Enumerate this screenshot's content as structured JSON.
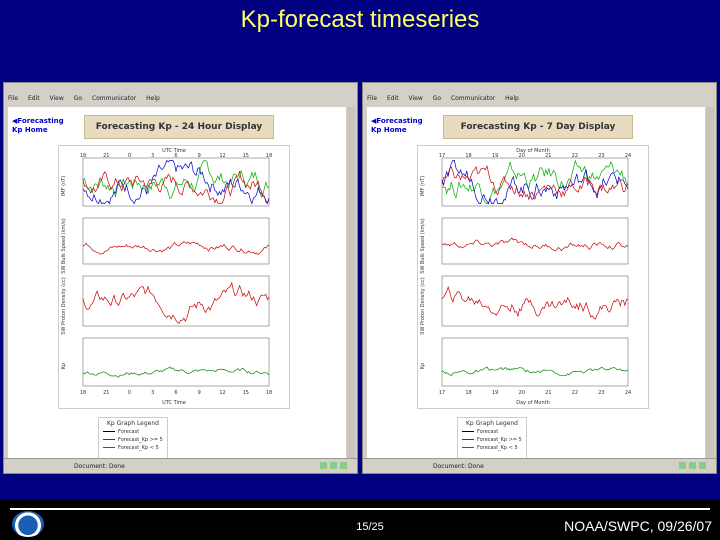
{
  "slide": {
    "title": "Kp-forecast timeseries",
    "page": "15/25",
    "credit": "NOAA/SWPC, 09/26/07"
  },
  "windows": [
    {
      "menu": [
        "File",
        "Edit",
        "View",
        "Go",
        "Communicator",
        "Help"
      ],
      "home_link": "Forecasting Kp Home",
      "header": "Forecasting Kp - 24 Hour Display",
      "top_axis": "UTC Time",
      "bottom_axis": "UTC Time",
      "top_ticks": [
        "18",
        "21",
        "0",
        "3",
        "6",
        "9",
        "12",
        "15",
        "18"
      ],
      "bottom_ticks": [
        "18",
        "21",
        "0",
        "3",
        "6",
        "9",
        "12",
        "15",
        "18"
      ],
      "status": "Document: Done",
      "panels": [
        "IMF (nT)",
        "SW Bulk Speed (km/s)",
        "SW Proton Density (cc)",
        "Kp"
      ],
      "legend": {
        "title": "Kp Graph Legend",
        "items": [
          "Forecast",
          "Forecast_Kp >= 5",
          "Forecast_Kp < 5"
        ]
      }
    },
    {
      "menu": [
        "File",
        "Edit",
        "View",
        "Go",
        "Communicator",
        "Help"
      ],
      "home_link": "Forecasting Kp Home",
      "header": "Forecasting Kp - 7 Day Display",
      "top_axis": "Day of Month",
      "bottom_axis": "Day of Month",
      "top_ticks": [
        "17",
        "18",
        "19",
        "20",
        "21",
        "22",
        "23",
        "24"
      ],
      "bottom_ticks": [
        "17",
        "18",
        "19",
        "20",
        "21",
        "22",
        "23",
        "24"
      ],
      "status": "Document: Done",
      "panels": [
        "IMF (nT)",
        "SW Bulk Speed (km/s)",
        "SW Proton Density (cc)",
        "Kp"
      ],
      "legend": {
        "title": "Kp Graph Legend",
        "items": [
          "Forecast",
          "Forecast_Kp >= 5",
          "Forecast_Kp < 5"
        ]
      }
    }
  ],
  "colors": {
    "slide_bg": "#000080",
    "title": "#ffff66",
    "bz_red": "#cc0000",
    "bx_green": "#00aa00",
    "by_blue": "#0000cc",
    "kp_green": "#008800"
  }
}
